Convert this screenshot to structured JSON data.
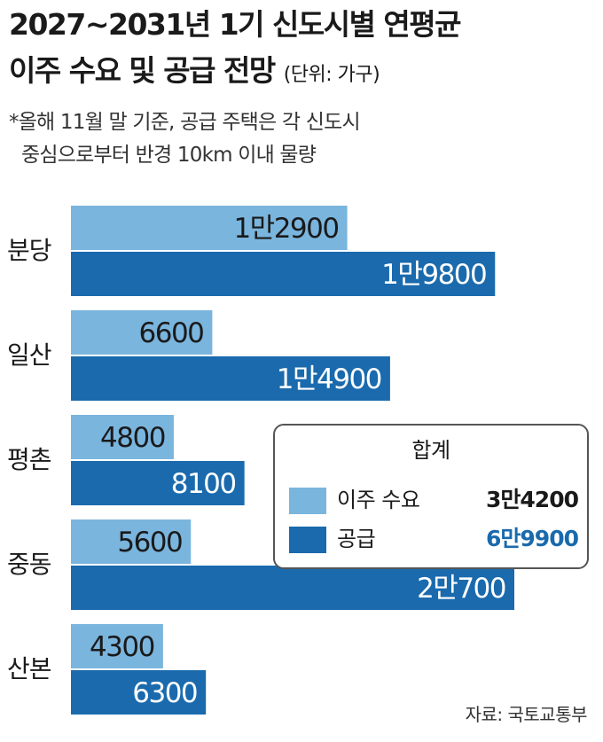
{
  "title": {
    "line1": "2027~2031년 1기 신도시별 연평균",
    "line2": "이주 수요 및 공급 전망",
    "unit": "(단위: 가구)"
  },
  "note": {
    "line1": "*올해 11월 말 기준, 공급 주택은 각 신도시",
    "line2": "중심으로부터 반경 10km 이내 물량"
  },
  "source": "자료: 국토교통부",
  "colors": {
    "demand": "#7ab5de",
    "supply": "#1a6aad",
    "supply_total_text": "#1a6aad"
  },
  "legend": {
    "title": "합계",
    "items": [
      {
        "label": "이주 수요",
        "total": "3만4200"
      },
      {
        "label": "공급",
        "total": "6만9900"
      }
    ]
  },
  "chart_data": {
    "type": "bar",
    "orientation": "horizontal",
    "categories": [
      "분당",
      "일산",
      "평촌",
      "중동",
      "산본"
    ],
    "series": [
      {
        "name": "이주 수요",
        "values": [
          12900,
          6600,
          4800,
          5600,
          4300
        ],
        "labels": [
          "1만2900",
          "6600",
          "4800",
          "5600",
          "4300"
        ]
      },
      {
        "name": "공급",
        "values": [
          19800,
          14900,
          8100,
          20700,
          6300
        ],
        "labels": [
          "1만9800",
          "1만4900",
          "8100",
          "2만700",
          "6300"
        ]
      }
    ],
    "xlim": [
      0,
      21500
    ],
    "grid": false,
    "legend_position": "bottom-right"
  }
}
